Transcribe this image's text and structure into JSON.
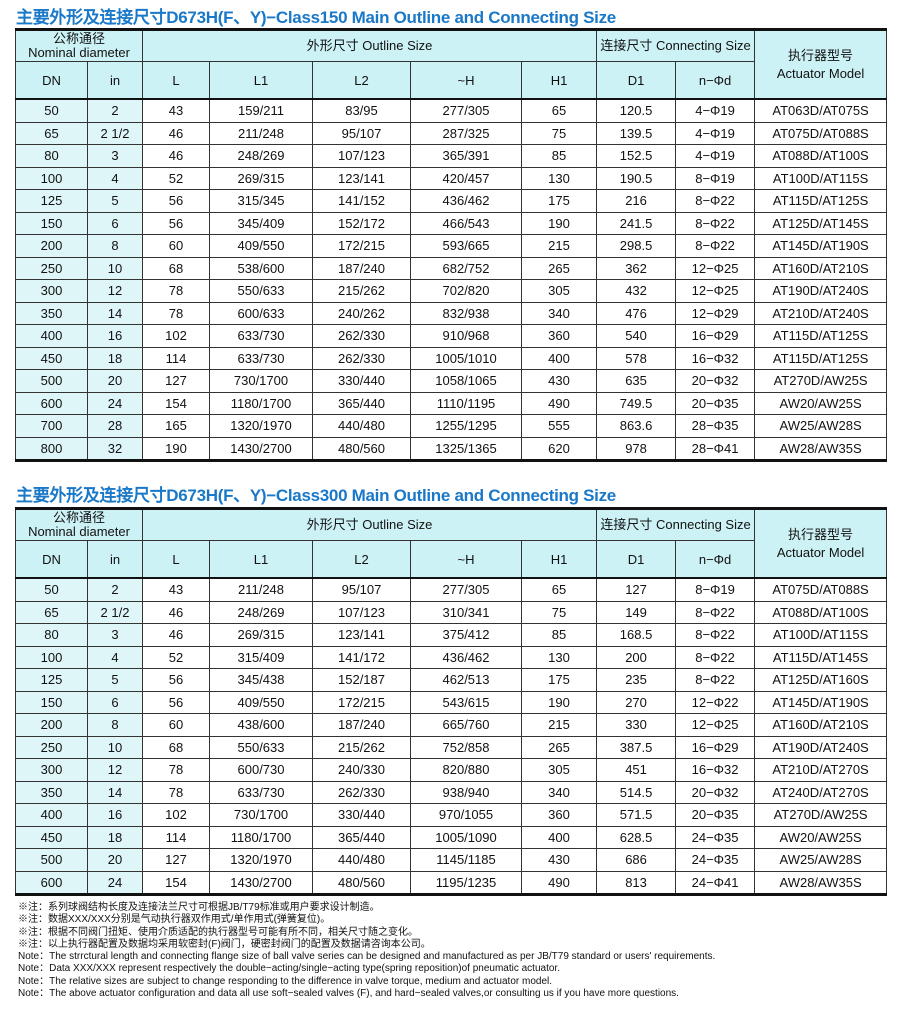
{
  "headers": {
    "nominal": "公称通径\nNominal diameter",
    "outline": "外形尺寸 Outline Size",
    "connecting": "连接尺寸 Connecting Size",
    "actuator": "执行器型号\nActuator Model",
    "columns": [
      "DN",
      "in",
      "L",
      "L1",
      "L2",
      "~H",
      "H1",
      "D1",
      "n−Φd"
    ]
  },
  "tables": [
    {
      "title": "主要外形及连接尺寸D673H(F、Y)−Class150 Main Outline and Connecting Size",
      "rows": [
        [
          "50",
          "2",
          "43",
          "159/211",
          "83/95",
          "277/305",
          "65",
          "120.5",
          "4−Φ19",
          "AT063D/AT075S"
        ],
        [
          "65",
          "2 1/2",
          "46",
          "211/248",
          "95/107",
          "287/325",
          "75",
          "139.5",
          "4−Φ19",
          "AT075D/AT088S"
        ],
        [
          "80",
          "3",
          "46",
          "248/269",
          "107/123",
          "365/391",
          "85",
          "152.5",
          "4−Φ19",
          "AT088D/AT100S"
        ],
        [
          "100",
          "4",
          "52",
          "269/315",
          "123/141",
          "420/457",
          "130",
          "190.5",
          "8−Φ19",
          "AT100D/AT115S"
        ],
        [
          "125",
          "5",
          "56",
          "315/345",
          "141/152",
          "436/462",
          "175",
          "216",
          "8−Φ22",
          "AT115D/AT125S"
        ],
        [
          "150",
          "6",
          "56",
          "345/409",
          "152/172",
          "466/543",
          "190",
          "241.5",
          "8−Φ22",
          "AT125D/AT145S"
        ],
        [
          "200",
          "8",
          "60",
          "409/550",
          "172/215",
          "593/665",
          "215",
          "298.5",
          "8−Φ22",
          "AT145D/AT190S"
        ],
        [
          "250",
          "10",
          "68",
          "538/600",
          "187/240",
          "682/752",
          "265",
          "362",
          "12−Φ25",
          "AT160D/AT210S"
        ],
        [
          "300",
          "12",
          "78",
          "550/633",
          "215/262",
          "702/820",
          "305",
          "432",
          "12−Φ25",
          "AT190D/AT240S"
        ],
        [
          "350",
          "14",
          "78",
          "600/633",
          "240/262",
          "832/938",
          "340",
          "476",
          "12−Φ29",
          "AT210D/AT240S"
        ],
        [
          "400",
          "16",
          "102",
          "633/730",
          "262/330",
          "910/968",
          "360",
          "540",
          "16−Φ29",
          "AT115D/AT125S"
        ],
        [
          "450",
          "18",
          "114",
          "633/730",
          "262/330",
          "1005/1010",
          "400",
          "578",
          "16−Φ32",
          "AT115D/AT125S"
        ],
        [
          "500",
          "20",
          "127",
          "730/1700",
          "330/440",
          "1058/1065",
          "430",
          "635",
          "20−Φ32",
          "AT270D/AW25S"
        ],
        [
          "600",
          "24",
          "154",
          "1180/1700",
          "365/440",
          "1110/1195",
          "490",
          "749.5",
          "20−Φ35",
          "AW20/AW25S"
        ],
        [
          "700",
          "28",
          "165",
          "1320/1970",
          "440/480",
          "1255/1295",
          "555",
          "863.6",
          "28−Φ35",
          "AW25/AW28S"
        ],
        [
          "800",
          "32",
          "190",
          "1430/2700",
          "480/560",
          "1325/1365",
          "620",
          "978",
          "28−Φ41",
          "AW28/AW35S"
        ]
      ]
    },
    {
      "title": "主要外形及连接尺寸D673H(F、Y)−Class300 Main Outline and Connecting Size",
      "rows": [
        [
          "50",
          "2",
          "43",
          "211/248",
          "95/107",
          "277/305",
          "65",
          "127",
          "8−Φ19",
          "AT075D/AT088S"
        ],
        [
          "65",
          "2 1/2",
          "46",
          "248/269",
          "107/123",
          "310/341",
          "75",
          "149",
          "8−Φ22",
          "AT088D/AT100S"
        ],
        [
          "80",
          "3",
          "46",
          "269/315",
          "123/141",
          "375/412",
          "85",
          "168.5",
          "8−Φ22",
          "AT100D/AT115S"
        ],
        [
          "100",
          "4",
          "52",
          "315/409",
          "141/172",
          "436/462",
          "130",
          "200",
          "8−Φ22",
          "AT115D/AT145S"
        ],
        [
          "125",
          "5",
          "56",
          "345/438",
          "152/187",
          "462/513",
          "175",
          "235",
          "8−Φ22",
          "AT125D/AT160S"
        ],
        [
          "150",
          "6",
          "56",
          "409/550",
          "172/215",
          "543/615",
          "190",
          "270",
          "12−Φ22",
          "AT145D/AT190S"
        ],
        [
          "200",
          "8",
          "60",
          "438/600",
          "187/240",
          "665/760",
          "215",
          "330",
          "12−Φ25",
          "AT160D/AT210S"
        ],
        [
          "250",
          "10",
          "68",
          "550/633",
          "215/262",
          "752/858",
          "265",
          "387.5",
          "16−Φ29",
          "AT190D/AT240S"
        ],
        [
          "300",
          "12",
          "78",
          "600/730",
          "240/330",
          "820/880",
          "305",
          "451",
          "16−Φ32",
          "AT210D/AT270S"
        ],
        [
          "350",
          "14",
          "78",
          "633/730",
          "262/330",
          "938/940",
          "340",
          "514.5",
          "20−Φ32",
          "AT240D/AT270S"
        ],
        [
          "400",
          "16",
          "102",
          "730/1700",
          "330/440",
          "970/1055",
          "360",
          "571.5",
          "20−Φ35",
          "AT270D/AW25S"
        ],
        [
          "450",
          "18",
          "114",
          "1180/1700",
          "365/440",
          "1005/1090",
          "400",
          "628.5",
          "24−Φ35",
          "AW20/AW25S"
        ],
        [
          "500",
          "20",
          "127",
          "1320/1970",
          "440/480",
          "1145/1185",
          "430",
          "686",
          "24−Φ35",
          "AW25/AW28S"
        ],
        [
          "600",
          "24",
          "154",
          "1430/2700",
          "480/560",
          "1195/1235",
          "490",
          "813",
          "24−Φ41",
          "AW28/AW35S"
        ]
      ]
    }
  ],
  "notes": [
    "※注：系列球阀结构长度及连接法兰尺寸可根据JB/T79标准或用户要求设计制造。",
    "※注：数据XXX/XXX分别是气动执行器双作用式/单作用式(弹簧复位)。",
    "※注：根据不同阀门扭矩、使用介质适配的执行器型号可能有所不同，相关尺寸随之变化。",
    "※注：以上执行器配置及数据均采用软密封(F)阀门，硬密封阀门的配置及数据请咨询本公司。",
    "Note：The strrctural length and connecting flange size of ball valve series can be designed and manufactured as per JB/T79 standard or users' requirements.",
    "Note：Data XXX/XXX represent respectively the double−acting/single−acting type(spring reposition)of pneumatic actuator.",
    "Note：The relative sizes are subject to change responding to the difference in valve torque, medium and actuator model.",
    "Note：The above actuator  configuration and data all use soft−sealed valves (F), and hard−sealed valves,or consulting us if you have more questions."
  ]
}
